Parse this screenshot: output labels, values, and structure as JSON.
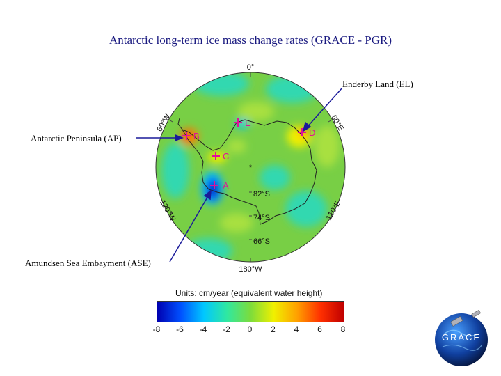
{
  "title": "Antarctic long-term ice mass change rates (GRACE - PGR)",
  "callouts": {
    "enderby": "Enderby Land (EL)",
    "peninsula": "Antarctic Peninsula (AP)",
    "amundsen": "Amundsen Sea Embayment (ASE)"
  },
  "map": {
    "longitudes": {
      "lon_0": "0°",
      "lon_60e": "60°E",
      "lon_120e": "120°E",
      "lon_180w": "180°W",
      "lon_120w": "120°W",
      "lon_60w": "60°W"
    },
    "latitudes": {
      "lat_82s": "82°S",
      "lat_74s": "74°S",
      "lat_66s": "66°S"
    },
    "sites": {
      "a": "A",
      "b": "B",
      "c": "C",
      "d": "D",
      "e": "E"
    }
  },
  "colorbar": {
    "units_label": "Units: cm/year (equivalent water height)",
    "min": -8,
    "max": 8,
    "ticks": [
      "-8",
      "-6",
      "-4",
      "-2",
      "0",
      "2",
      "4",
      "6",
      "8"
    ],
    "colors": [
      "#0000b0",
      "#0050ff",
      "#00c8ff",
      "#30e8a0",
      "#7cdc3c",
      "#f0f000",
      "#ffa000",
      "#ff3000",
      "#c00000"
    ]
  },
  "logo": {
    "text": "GRACE"
  },
  "colors": {
    "title": "#1a1a80",
    "ocean_green": "#78cf45",
    "site_marker": "#e0109a",
    "leader_line": "#1a1a9a"
  }
}
